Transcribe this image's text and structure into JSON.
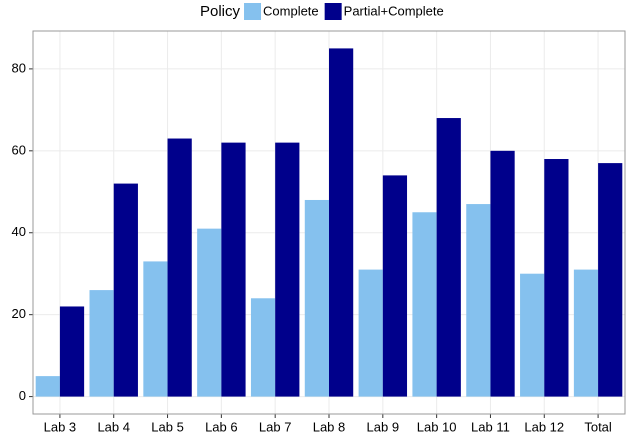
{
  "chart_data": {
    "type": "bar",
    "legend_title": "Policy",
    "categories": [
      "Lab 3",
      "Lab 4",
      "Lab 5",
      "Lab 6",
      "Lab 7",
      "Lab 8",
      "Lab 9",
      "Lab 10",
      "Lab 11",
      "Lab 12",
      "Total"
    ],
    "series": [
      {
        "name": "Complete",
        "color": "#85c1ee",
        "values": [
          5,
          26,
          33,
          41,
          24,
          48,
          31,
          45,
          47,
          30,
          31
        ]
      },
      {
        "name": "Partial+Complete",
        "color": "#00008b",
        "values": [
          22,
          52,
          63,
          62,
          62,
          85,
          54,
          68,
          60,
          58,
          57
        ]
      }
    ],
    "ylim": [
      -4.25,
      89.25
    ],
    "yticks": [
      0,
      20,
      40,
      60,
      80
    ],
    "grid": true,
    "legend_position": "top"
  }
}
